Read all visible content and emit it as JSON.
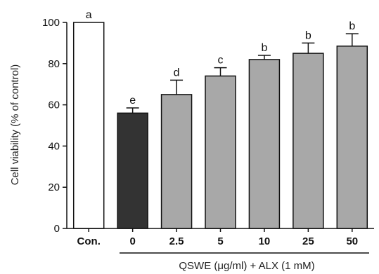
{
  "chart_data": {
    "type": "bar",
    "categories": [
      "Con.",
      "0",
      "2.5",
      "5",
      "10",
      "25",
      "50"
    ],
    "values": [
      100,
      56,
      65,
      74,
      82,
      85,
      88.5
    ],
    "errors": [
      0,
      2.5,
      7,
      4,
      2,
      5,
      6
    ],
    "significance": [
      "a",
      "e",
      "d",
      "c",
      "b",
      "b",
      "b"
    ],
    "bar_colors": [
      "#ffffff",
      "#333333",
      "#a8a8a8",
      "#a8a8a8",
      "#a8a8a8",
      "#a8a8a8",
      "#a8a8a8"
    ],
    "ylabel": "Cell viability (% of control)",
    "xlabel": "QSWE (μg/ml) + ALX (1 mM)",
    "ylim": [
      0,
      100
    ],
    "yticks": [
      0,
      20,
      40,
      60,
      80,
      100
    ],
    "grid": false,
    "legend": "none"
  }
}
